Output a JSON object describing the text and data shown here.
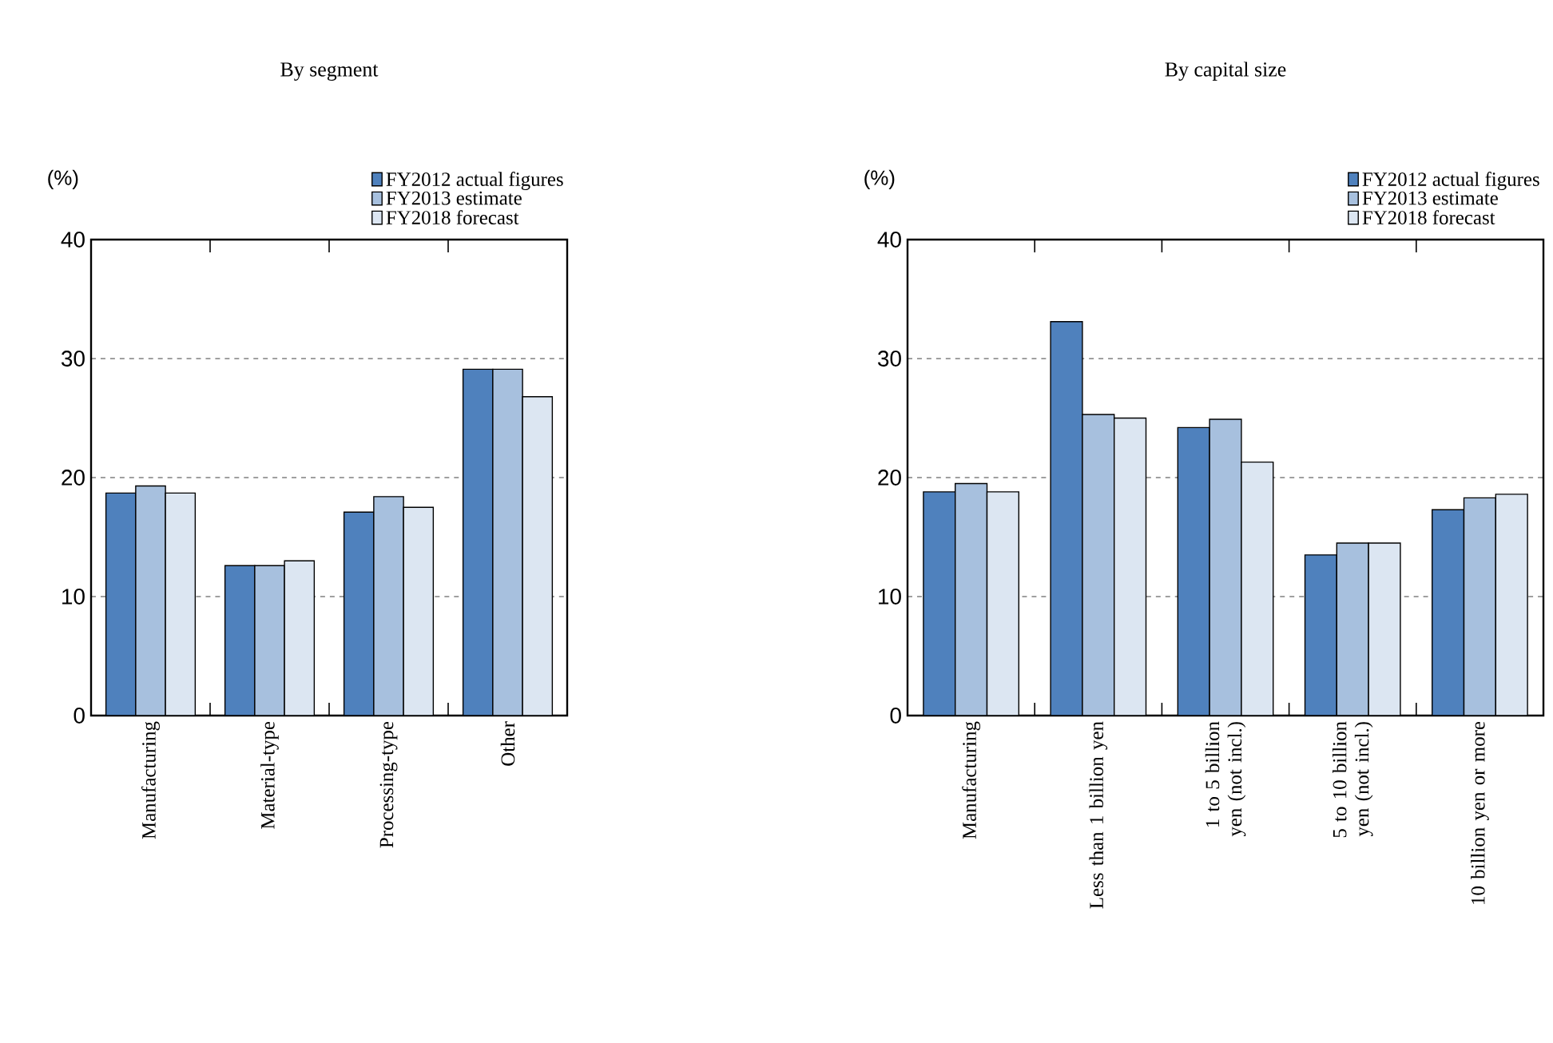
{
  "chart_data": [
    {
      "type": "bar",
      "title": "By segment",
      "ylabel": "(%)",
      "categories": [
        "Manufacturing",
        "Material-type",
        "Processing-type",
        "Other"
      ],
      "series": [
        {
          "name": "FY2012 actual figures",
          "color": "#4f81bd",
          "values": [
            18.7,
            12.6,
            17.1,
            29.1
          ]
        },
        {
          "name": "FY2013 estimate",
          "color": "#a7c0de",
          "values": [
            19.3,
            12.6,
            18.4,
            29.1
          ]
        },
        {
          "name": "FY2018 forecast",
          "color": "#dce6f2",
          "values": [
            18.7,
            13.0,
            17.5,
            26.8
          ]
        }
      ],
      "ylim": [
        0,
        40
      ],
      "yticks": [
        0,
        10,
        20,
        30,
        40
      ],
      "grid": "y",
      "legend": "top right"
    },
    {
      "type": "bar",
      "title": "By capital size",
      "ylabel": "(%)",
      "categories": [
        "Manufacturing",
        "Less than 1 billion yen",
        "1 to 5 billion yen (not incl.)",
        "5 to 10 billion yen (not incl.)",
        "10 billion yen or more"
      ],
      "series": [
        {
          "name": "FY2012 actual figures",
          "color": "#4f81bd",
          "values": [
            18.8,
            33.1,
            24.2,
            13.5,
            17.3
          ]
        },
        {
          "name": "FY2013 estimate",
          "color": "#a7c0de",
          "values": [
            19.5,
            25.3,
            24.9,
            14.5,
            18.3
          ]
        },
        {
          "name": "FY2018 forecast",
          "color": "#dce6f2",
          "values": [
            18.8,
            25.0,
            21.3,
            14.5,
            18.6
          ]
        }
      ],
      "ylim": [
        0,
        40
      ],
      "yticks": [
        0,
        10,
        20,
        30,
        40
      ],
      "grid": "y",
      "legend": "top right"
    }
  ]
}
